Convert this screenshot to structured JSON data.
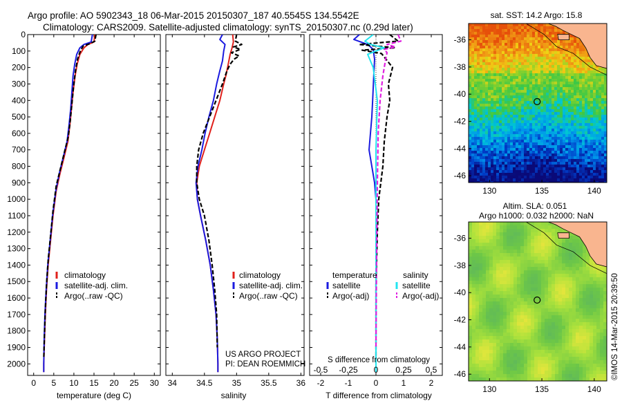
{
  "header": {
    "line1": "Argo profile: AO 5902343_18 06-Mar-2015 20150307_187 40.5545S 134.5542E",
    "line2": "Climatology: CARS2009. Satellite-adjusted climatology: synTS_20150307.nc (0.29d later)"
  },
  "colors": {
    "climatology": "#e0201b",
    "satellite": "#1a1adf",
    "argo": "#000000",
    "salinity_sat": "#22e5f0",
    "salinity_argo": "#e020e0"
  },
  "depth_axis": {
    "ylim": [
      0,
      2070
    ],
    "ticks": [
      0,
      100,
      200,
      300,
      400,
      500,
      600,
      700,
      800,
      900,
      1000,
      1100,
      1200,
      1300,
      1400,
      1500,
      1600,
      1700,
      1800,
      1900,
      2000
    ]
  },
  "chart_data": [
    {
      "type": "line",
      "id": "temperature",
      "xlabel": "temperature (deg C)",
      "xlim": [
        -1.5,
        31.5
      ],
      "xticks": [
        0,
        5,
        10,
        15,
        20,
        25,
        30
      ],
      "series": [
        {
          "name": "climatology",
          "color": "#e0201b",
          "x": [
            15.2,
            15.0,
            13.5,
            12.5,
            11.5,
            10.8,
            10.3,
            9.8,
            9.4,
            9.0,
            8.5,
            7.5,
            6.5,
            5.6,
            4.8,
            4.2,
            3.6,
            3.2,
            2.9,
            2.7,
            2.5,
            2.5
          ],
          "y": [
            0,
            45,
            60,
            80,
            120,
            180,
            250,
            350,
            450,
            550,
            650,
            750,
            850,
            950,
            1100,
            1250,
            1400,
            1550,
            1700,
            1850,
            2000,
            2050
          ]
        },
        {
          "name": "satellite-adj. clim.",
          "color": "#1a1adf",
          "x": [
            14.6,
            14.3,
            12.5,
            11.5,
            10.7,
            10.2,
            9.8,
            9.5,
            9.2,
            8.8,
            8.3,
            7.3,
            6.3,
            5.5,
            4.7,
            4.1,
            3.5,
            3.1,
            2.8,
            2.6,
            2.5,
            2.5
          ],
          "y": [
            0,
            45,
            60,
            80,
            120,
            180,
            250,
            350,
            450,
            550,
            650,
            750,
            850,
            950,
            1100,
            1250,
            1400,
            1550,
            1700,
            1850,
            2000,
            2050
          ]
        },
        {
          "name": "Argo(..raw -QC)",
          "color": "#000000",
          "dash": true,
          "x": [
            15.5,
            15.2,
            14.0,
            12.3,
            11.6,
            10.9,
            10.4,
            9.9,
            9.5,
            9.1,
            8.6,
            7.6,
            6.6,
            5.6,
            4.8,
            4.2,
            3.6,
            3.2,
            2.9,
            2.7,
            2.5
          ],
          "y": [
            0,
            40,
            55,
            70,
            100,
            150,
            220,
            320,
            420,
            520,
            620,
            720,
            820,
            920,
            1070,
            1220,
            1370,
            1520,
            1670,
            1820,
            1970
          ]
        }
      ],
      "legend": {
        "position": "center-left",
        "entries": [
          "climatology",
          "satellite-adj. clim.",
          "Argo(..raw -QC)"
        ]
      }
    },
    {
      "type": "line",
      "id": "salinity",
      "xlabel": "salinity",
      "xlim": [
        33.9,
        36.05
      ],
      "xticks": [
        34,
        34.5,
        35,
        35.5,
        36
      ],
      "series": [
        {
          "name": "climatology",
          "color": "#e0201b",
          "x": [
            34.94,
            34.95,
            34.93,
            34.9,
            34.87,
            34.84,
            34.8,
            34.74,
            34.66,
            34.58,
            34.5,
            34.42,
            34.38,
            34.39,
            34.44,
            34.52,
            34.59,
            34.64,
            34.68,
            34.7,
            34.71,
            34.71
          ],
          "y": [
            0,
            45,
            80,
            120,
            180,
            240,
            300,
            400,
            500,
            600,
            700,
            800,
            900,
            1000,
            1100,
            1250,
            1400,
            1550,
            1700,
            1850,
            2000,
            2050
          ]
        },
        {
          "name": "satellite-adj. clim.",
          "color": "#1a1adf",
          "x": [
            34.78,
            34.74,
            34.82,
            34.8,
            34.78,
            34.74,
            34.69,
            34.64,
            34.57,
            34.51,
            34.46,
            34.4,
            34.37,
            34.39,
            34.44,
            34.52,
            34.59,
            34.64,
            34.68,
            34.7,
            34.71,
            34.71
          ],
          "y": [
            0,
            30,
            60,
            100,
            160,
            220,
            300,
            400,
            500,
            600,
            700,
            800,
            900,
            1000,
            1100,
            1250,
            1400,
            1550,
            1700,
            1850,
            2000,
            2050
          ]
        },
        {
          "name": "Argo(..raw -QC)",
          "color": "#000000",
          "dash": true,
          "x": [
            35.0,
            34.98,
            35.08,
            34.95,
            35.06,
            34.92,
            35.04,
            34.96,
            34.9,
            34.85,
            34.78,
            34.68,
            34.58,
            34.48,
            34.41,
            34.38,
            34.38,
            34.42,
            34.5,
            34.57,
            34.62,
            34.66,
            34.69,
            34.7
          ],
          "y": [
            0,
            40,
            60,
            75,
            90,
            110,
            130,
            150,
            180,
            220,
            300,
            400,
            500,
            600,
            700,
            800,
            900,
            1000,
            1100,
            1250,
            1400,
            1550,
            1700,
            1900
          ]
        }
      ],
      "legend": {
        "position": "bottom-center",
        "entries": [
          "climatology",
          "satellite-adj. clim.",
          "Argo(..raw -QC)"
        ]
      },
      "annotation": [
        "US ARGO PROJECT",
        "PI: DEAN ROEMMICH"
      ]
    },
    {
      "type": "line",
      "id": "difference",
      "xlabel": "T difference from climatology",
      "xlabel_top": "S difference from climatology",
      "xlim": [
        -2.4,
        2.4
      ],
      "xticks": [
        -2,
        -1,
        0,
        1,
        2
      ],
      "xticks_top": [
        -0.5,
        -0.25,
        0,
        0.25,
        0.5
      ],
      "xticks_top_labels": [
        "-0.5",
        "-0.25",
        "0",
        "0.25",
        "0.5"
      ],
      "zero_line": true,
      "series": [
        {
          "name": "temperature satellite",
          "color": "#1a1adf",
          "x": [
            -0.6,
            -0.8,
            -0.3,
            -0.1,
            -0.05,
            -0.08,
            -0.12,
            -0.15,
            -0.2,
            -0.25,
            -0.15,
            -0.05,
            0,
            0,
            0,
            0
          ],
          "y": [
            0,
            30,
            60,
            90,
            150,
            250,
            400,
            500,
            600,
            700,
            800,
            900,
            1000,
            1400,
            1800,
            2050
          ]
        },
        {
          "name": "temperature Argo(-adj)",
          "color": "#000000",
          "dash": true,
          "x": [
            0.5,
            0.8,
            -0.6,
            0.7,
            -0.5,
            0.2,
            0.6,
            0.45,
            0.5,
            0.4,
            0.3,
            0.25,
            0.1,
            0.05,
            0,
            0
          ],
          "y": [
            0,
            40,
            60,
            80,
            95,
            115,
            200,
            300,
            400,
            500,
            650,
            800,
            1000,
            1200,
            1500,
            2000
          ]
        },
        {
          "name": "salinity satellite",
          "color": "#22e5f0",
          "x": [
            -0.1,
            -0.4,
            -0.2,
            0.3,
            -0.3,
            -0.1,
            0.05,
            0,
            0
          ],
          "y": [
            0,
            40,
            60,
            80,
            120,
            200,
            400,
            700,
            2050
          ]
        },
        {
          "name": "salinity Argo(-adj)",
          "color": "#e020e0",
          "dash": true,
          "x": [
            0.8,
            0.9,
            0.4,
            0.7,
            0.3,
            0.4,
            0.35,
            0.25,
            0.15,
            0.08,
            0.05,
            0.02,
            0
          ],
          "y": [
            0,
            40,
            60,
            75,
            90,
            110,
            150,
            250,
            400,
            600,
            900,
            1400,
            1900
          ]
        }
      ],
      "legend": {
        "temperature_heading": "temperature",
        "salinity_heading": "salinity",
        "temperature_entries": [
          "satellite",
          "Argo(-adj)"
        ],
        "salinity_entries": [
          "satellite",
          "Argo(-adj)"
        ]
      }
    },
    {
      "type": "heatmap",
      "id": "sst_map",
      "title": "sat. SST: 14.2  Argo: 15.8",
      "xlim": [
        128,
        141.2
      ],
      "ylim": [
        -46.5,
        -34.8
      ],
      "xticks": [
        130,
        135,
        140
      ],
      "yticks": [
        -36,
        -38,
        -40,
        -42,
        -44,
        -46
      ],
      "marker": {
        "lon": 134.55,
        "lat": -40.55
      }
    },
    {
      "type": "heatmap",
      "id": "sla_map",
      "title": "Altim. SLA: 0.051",
      "subtitle": "Argo h1000: 0.032 h2000: NaN",
      "xlim": [
        128,
        141.2
      ],
      "ylim": [
        -46.5,
        -34.8
      ],
      "xticks": [
        130,
        135,
        140
      ],
      "yticks": [
        -36,
        -38,
        -40,
        -42,
        -44,
        -46
      ],
      "marker": {
        "lon": 134.55,
        "lat": -40.55
      }
    }
  ],
  "credit": "©IMOS 14-Mar-2015 20:39:50"
}
